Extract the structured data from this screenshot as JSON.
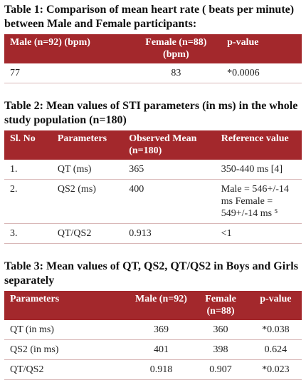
{
  "tables": [
    {
      "title": "Table 1: Comparison of mean heart rate ( beats per minute) between  Male and Female participants:",
      "header": [
        "Male (n=92) (bpm)",
        "Female (n=88) (bpm)",
        "p-value"
      ],
      "rows": [
        [
          "77",
          "83",
          "*0.0006"
        ]
      ]
    },
    {
      "title": "Table 2: Mean values of STI parameters (in ms) in the whole study population (n=180)",
      "header": [
        "Sl. No",
        "Parameters",
        "Observed Mean (n=180)",
        "Reference value"
      ],
      "rows": [
        [
          "1.",
          "QT (ms)",
          "365",
          "350-440 ms [4]"
        ],
        [
          "2.",
          "QS2 (ms)",
          "400",
          "Male = 546+/-14 ms Female = 549+/-14 ms ⁵"
        ],
        [
          "3.",
          "QT/QS2",
          "0.913",
          "<1"
        ]
      ]
    },
    {
      "title": "Table 3: Mean values of QT, QS2, QT/QS2 in Boys and Girls separately",
      "header": [
        "Parameters",
        "Male (n=92)",
        "Female (n=88)",
        "p-value"
      ],
      "rows": [
        [
          "QT (in ms)",
          "369",
          "360",
          "*0.038"
        ],
        [
          "QS2 (in ms)",
          "401",
          "398",
          "0.624"
        ],
        [
          "QT/QS2",
          "0.918",
          "0.907",
          "*0.023"
        ]
      ]
    }
  ]
}
